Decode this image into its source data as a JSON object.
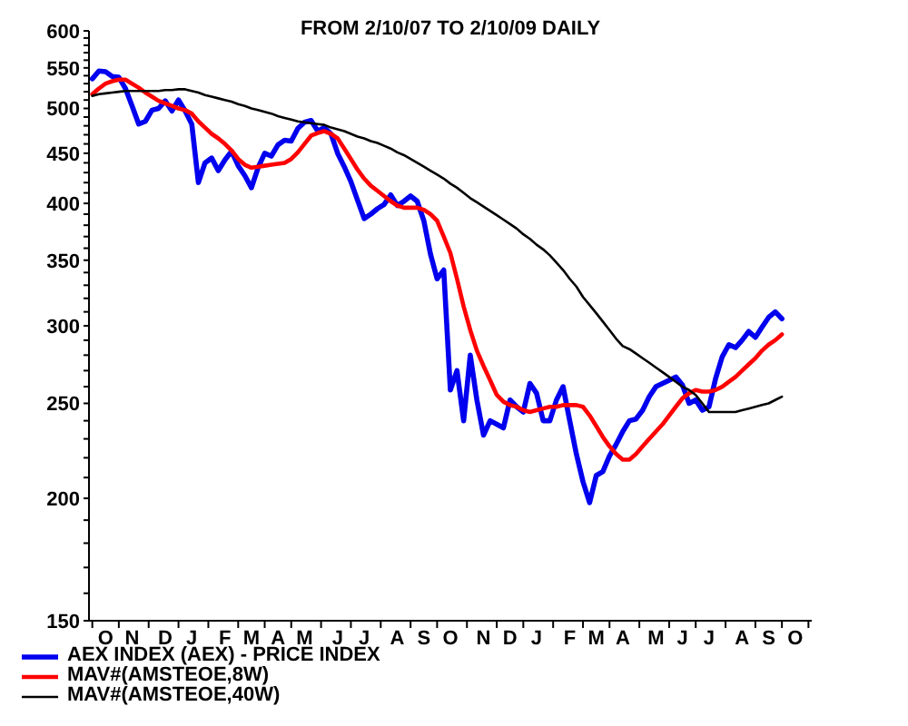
{
  "chart_data": {
    "type": "line",
    "title": "FROM 2/10/07 TO 2/10/09 DAILY",
    "categories": [
      null,
      null,
      "O",
      null,
      null,
      null,
      "N",
      null,
      null,
      null,
      null,
      "D",
      null,
      null,
      null,
      "J",
      null,
      null,
      null,
      null,
      "F",
      null,
      null,
      null,
      "M",
      null,
      null,
      null,
      "A",
      null,
      null,
      null,
      "M",
      null,
      null,
      null,
      null,
      "J",
      null,
      null,
      null,
      "J",
      null,
      null,
      null,
      null,
      "A",
      null,
      null,
      null,
      "S",
      null,
      null,
      null,
      "O",
      null,
      null,
      null,
      null,
      "N",
      null,
      null,
      null,
      "D",
      null,
      null,
      null,
      "J",
      null,
      null,
      null,
      null,
      "F",
      null,
      null,
      null,
      "M",
      null,
      null,
      null,
      "A",
      null,
      null,
      null,
      null,
      "M",
      null,
      null,
      null,
      "J",
      null,
      null,
      null,
      "J",
      null,
      null,
      null,
      null,
      "A",
      null,
      null,
      null,
      "S",
      null,
      null,
      null,
      "O",
      null,
      null
    ],
    "series": [
      {
        "name": "AEX INDEX (AEX) - PRICE INDEX",
        "color": "#0000ee",
        "values": [
          536,
          546,
          545,
          539,
          538,
          524,
          503,
          482,
          485,
          498,
          500,
          509,
          497,
          510,
          497,
          482,
          420,
          440,
          445,
          432,
          443,
          452,
          437,
          427,
          415,
          435,
          450,
          447,
          459,
          464,
          463,
          477,
          484,
          486,
          474,
          478,
          471,
          450,
          436,
          421,
          403,
          386,
          390,
          395,
          399,
          408,
          398,
          402,
          407,
          402,
          384,
          355,
          335,
          342,
          258,
          270,
          240,
          280,
          252,
          232,
          240,
          238,
          236,
          252,
          248,
          245,
          262,
          256,
          240,
          240,
          252,
          260,
          240,
          222,
          208,
          198,
          211,
          213,
          221,
          227,
          234,
          240,
          241,
          246,
          254,
          260,
          262,
          264,
          266,
          261,
          250,
          252,
          246,
          248,
          265,
          279,
          287,
          285,
          290,
          296,
          292,
          299,
          306,
          310,
          305,
          null,
          null,
          null,
          null
        ]
      },
      {
        "name": "MAV#(AMSTEOE,8W)",
        "color": "#ff0000",
        "values": [
          517,
          524,
          530,
          533,
          535,
          535,
          530,
          525,
          519,
          514,
          509,
          506,
          503,
          500,
          498,
          494,
          485,
          478,
          471,
          466,
          460,
          453,
          444,
          438,
          435,
          436,
          437,
          438,
          439,
          440,
          444,
          451,
          460,
          469,
          472,
          474,
          471,
          466,
          455,
          444,
          433,
          424,
          417,
          412,
          407,
          402,
          398,
          396,
          396,
          396,
          394,
          390,
          384,
          370,
          356,
          335,
          314,
          297,
          283,
          273,
          264,
          255,
          251,
          249,
          248,
          246,
          245,
          246,
          247,
          248,
          248,
          249,
          249,
          249,
          248,
          243,
          237,
          231,
          226,
          222,
          219,
          219,
          222,
          226,
          230,
          234,
          238,
          243,
          248,
          253,
          256,
          258,
          257,
          257,
          258,
          260,
          263,
          266,
          270,
          274,
          278,
          283,
          287,
          290,
          294,
          null,
          null,
          null,
          null
        ]
      },
      {
        "name": "MAV#(AMSTEOE,40W)",
        "color": "#000000",
        "values": [
          515,
          517,
          518,
          519,
          520,
          521,
          521,
          521,
          521,
          521,
          521,
          522,
          522,
          523,
          523,
          521,
          519,
          516,
          514,
          512,
          510,
          508,
          505,
          503,
          500,
          498,
          496,
          494,
          491,
          489,
          487,
          485,
          484,
          483,
          482,
          481,
          478,
          476,
          474,
          471,
          468,
          466,
          463,
          461,
          458,
          455,
          451,
          448,
          444,
          440,
          436,
          432,
          428,
          424,
          419,
          415,
          410,
          405,
          401,
          397,
          393,
          389,
          385,
          381,
          377,
          372,
          368,
          363,
          359,
          354,
          348,
          342,
          335,
          329,
          321,
          315,
          309,
          303,
          297,
          291,
          286,
          284,
          281,
          278,
          275,
          272,
          269,
          266,
          263,
          260,
          258,
          255,
          250,
          245,
          245,
          245,
          245,
          245,
          246,
          247,
          248,
          249,
          250,
          252,
          254,
          null,
          null,
          null,
          null
        ]
      }
    ],
    "ylim": [
      150,
      600
    ],
    "yticks": [
      150,
      {
        "value": 160,
        "label": null
      },
      {
        "value": 170,
        "label": null
      },
      {
        "value": 180,
        "label": null
      },
      {
        "value": 190,
        "label": null
      },
      200,
      {
        "value": 210,
        "label": null
      },
      {
        "value": 220,
        "label": null
      },
      {
        "value": 230,
        "label": null
      },
      {
        "value": 240,
        "label": null
      },
      250,
      {
        "value": 260,
        "label": null
      },
      {
        "value": 270,
        "label": null
      },
      {
        "value": 280,
        "label": null
      },
      {
        "value": 290,
        "label": null
      },
      300,
      {
        "value": 310,
        "label": null
      },
      {
        "value": 320,
        "label": null
      },
      {
        "value": 330,
        "label": null
      },
      {
        "value": 340,
        "label": null
      },
      350,
      {
        "value": 360,
        "label": null
      },
      {
        "value": 370,
        "label": null
      },
      {
        "value": 380,
        "label": null
      },
      {
        "value": 390,
        "label": null
      },
      400,
      {
        "value": 410,
        "label": null
      },
      {
        "value": 420,
        "label": null
      },
      {
        "value": 430,
        "label": null
      },
      {
        "value": 440,
        "label": null
      },
      450,
      {
        "value": 460,
        "label": null
      },
      {
        "value": 470,
        "label": null
      },
      {
        "value": 480,
        "label": null
      },
      {
        "value": 490,
        "label": null
      },
      500,
      {
        "value": 510,
        "label": null
      },
      {
        "value": 520,
        "label": null
      },
      {
        "value": 530,
        "label": null
      },
      {
        "value": 540,
        "label": null
      },
      550,
      {
        "value": 560,
        "label": null
      },
      {
        "value": 570,
        "label": null
      },
      {
        "value": 580,
        "label": null
      },
      {
        "value": 590,
        "label": null
      },
      600
    ],
    "log": true,
    "legend": "bottom left",
    "marker": "none",
    "line_style": "solid"
  }
}
